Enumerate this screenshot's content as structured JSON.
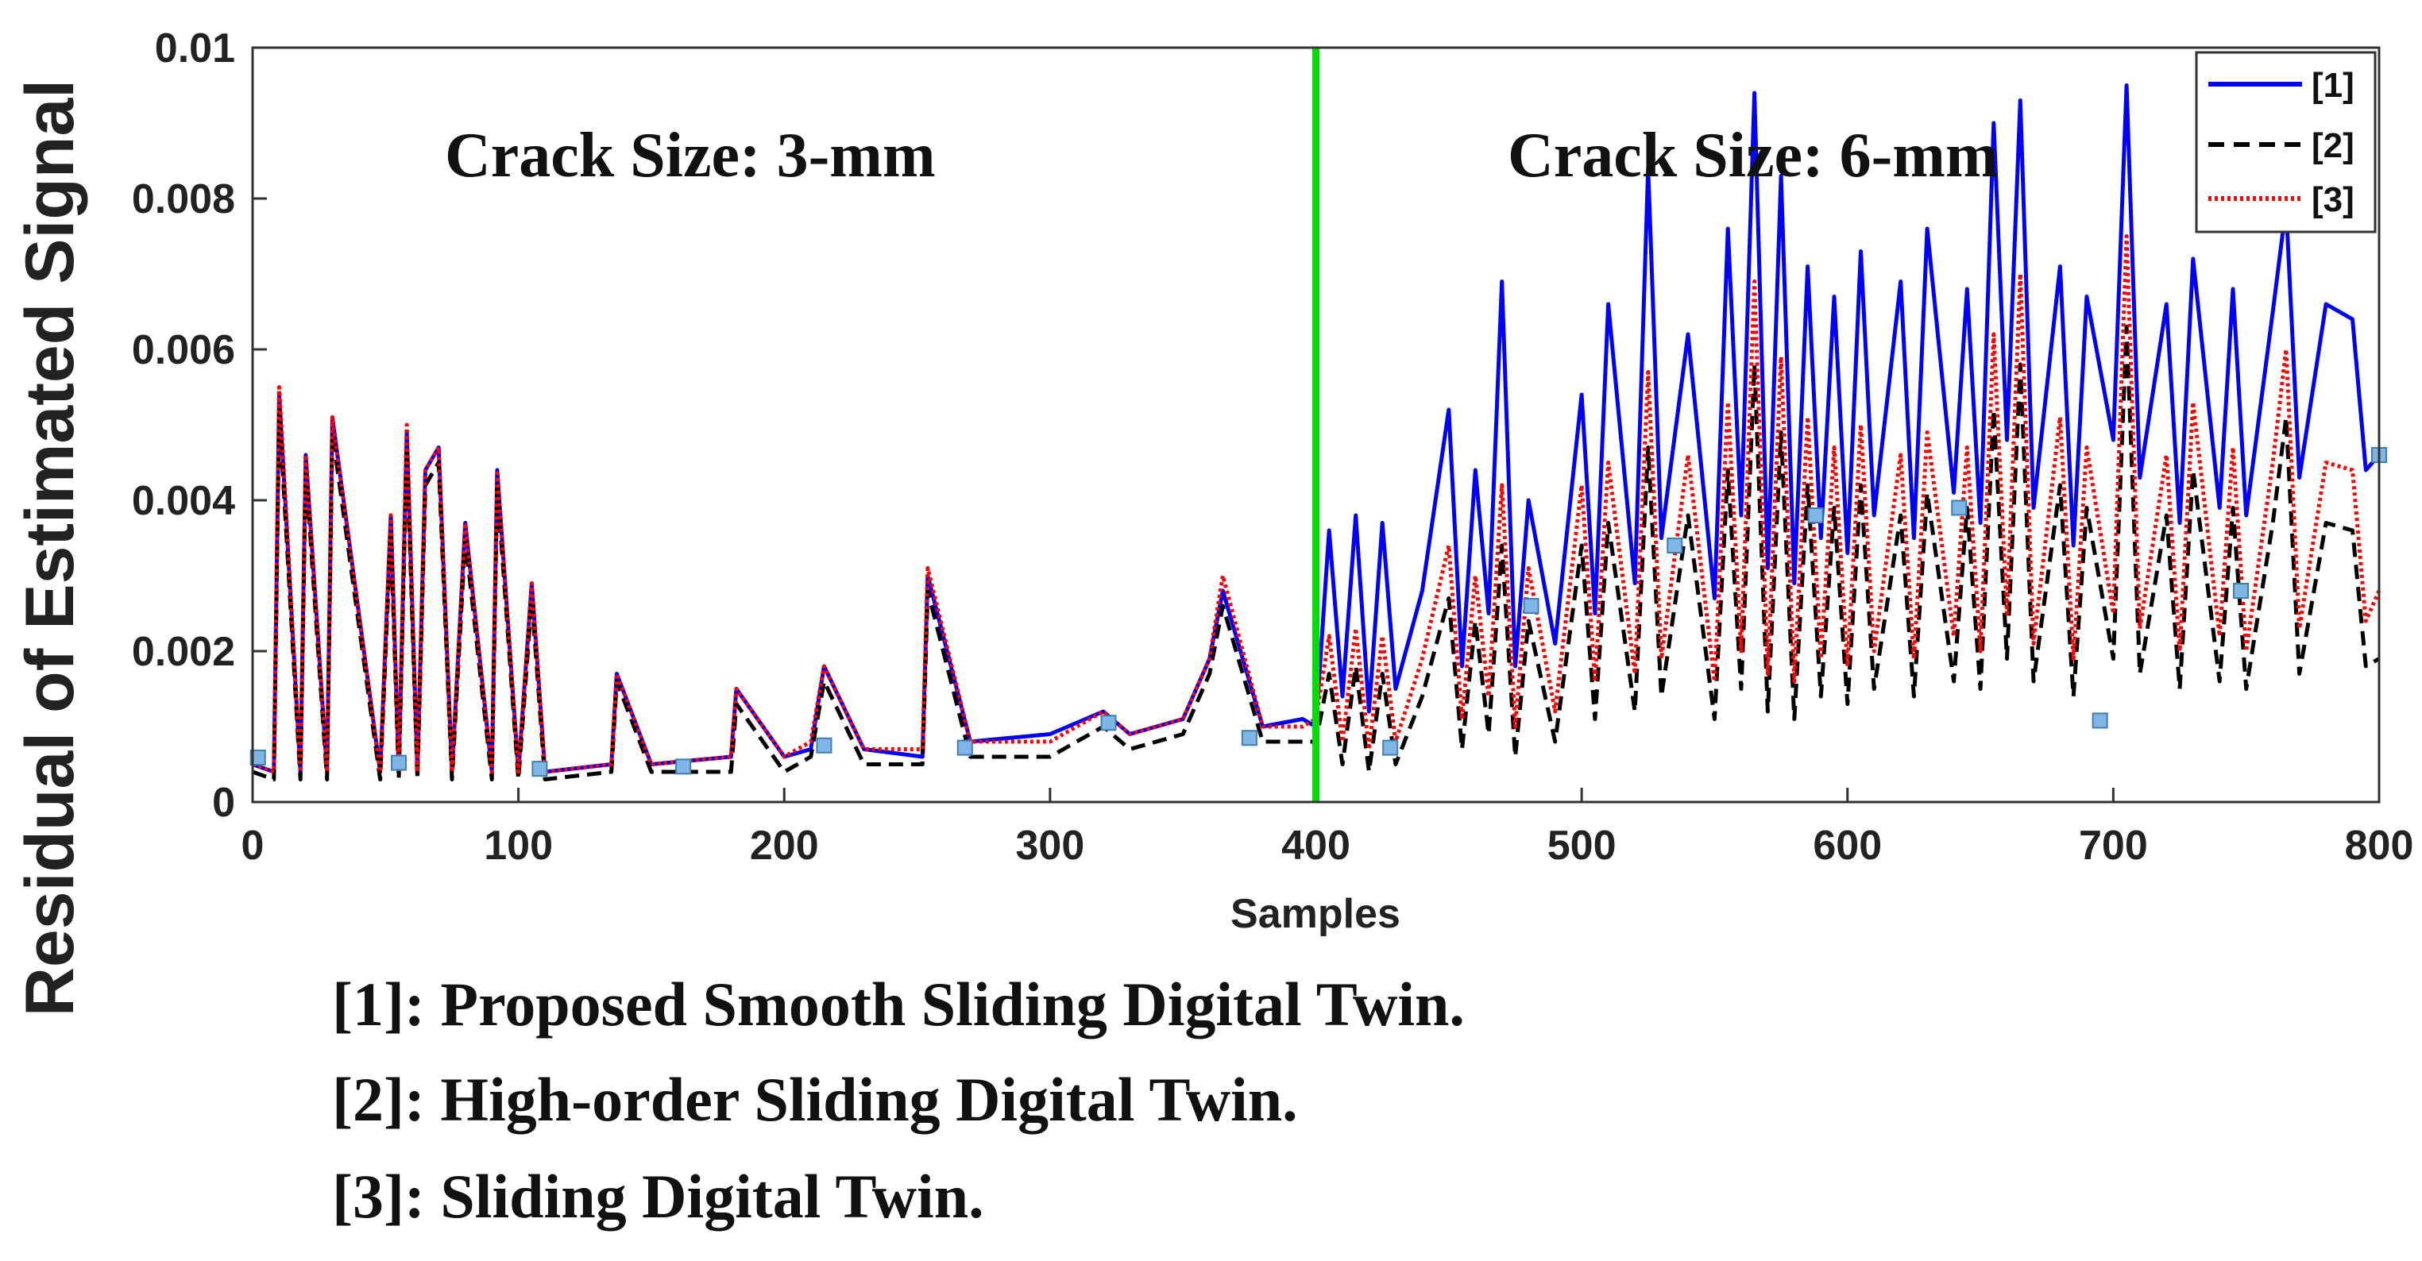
{
  "chart_data": {
    "type": "line",
    "xlabel": "Samples",
    "ylabel": "Residual of Estimated Signal",
    "xlim": [
      0,
      800
    ],
    "ylim": [
      0,
      0.01
    ],
    "x_ticks": [
      0,
      100,
      200,
      300,
      400,
      500,
      600,
      700,
      800
    ],
    "y_ticks": [
      0,
      0.002,
      0.004,
      0.006,
      0.008,
      0.01
    ],
    "x_tick_labels": [
      "0",
      "100",
      "200",
      "300",
      "400",
      "500",
      "600",
      "700",
      "800"
    ],
    "y_tick_labels": [
      "0",
      "0.002",
      "0.004",
      "0.006",
      "0.008",
      "0.01"
    ],
    "divider_x": 400,
    "divider_color": "#00dd00",
    "annotations": [
      {
        "text": "Crack Size: 3-mm",
        "x": 100,
        "y": 0.0085
      },
      {
        "text": "Crack Size: 6-mm",
        "x": 475,
        "y": 0.0085
      }
    ],
    "legend": {
      "placement": "top-right",
      "entries": [
        "[1]",
        "[2]",
        "[3]"
      ]
    },
    "series": [
      {
        "name": "[1]",
        "color": "#0000ff",
        "style": "solid",
        "x": [
          0,
          8,
          10,
          18,
          20,
          28,
          30,
          48,
          52,
          55,
          58,
          62,
          65,
          70,
          75,
          80,
          90,
          92,
          100,
          105,
          110,
          135,
          137,
          150,
          180,
          182,
          200,
          210,
          215,
          230,
          252,
          254,
          270,
          300,
          320,
          330,
          350,
          360,
          365,
          380,
          395,
          400,
          405,
          410,
          415,
          420,
          425,
          430,
          440,
          450,
          455,
          460,
          465,
          470,
          475,
          480,
          490,
          500,
          505,
          510,
          520,
          525,
          530,
          540,
          550,
          555,
          560,
          565,
          570,
          575,
          580,
          585,
          590,
          595,
          600,
          605,
          610,
          620,
          625,
          630,
          640,
          645,
          650,
          655,
          660,
          665,
          670,
          680,
          685,
          690,
          700,
          705,
          710,
          720,
          725,
          730,
          740,
          745,
          750,
          760,
          765,
          770,
          780,
          790,
          795,
          800
        ],
        "values": [
          0.0005,
          0.0004,
          0.0054,
          0.0004,
          0.0046,
          0.0004,
          0.0051,
          0.0004,
          0.0038,
          0.0004,
          0.0049,
          0.0004,
          0.0044,
          0.0047,
          0.0004,
          0.0037,
          0.0004,
          0.0044,
          0.0004,
          0.0029,
          0.0004,
          0.0005,
          0.0017,
          0.0005,
          0.0006,
          0.0015,
          0.0006,
          0.0007,
          0.0018,
          0.0007,
          0.0006,
          0.003,
          0.0008,
          0.0009,
          0.0012,
          0.0009,
          0.0011,
          0.0019,
          0.0028,
          0.001,
          0.0011,
          0.001,
          0.0036,
          0.0014,
          0.0038,
          0.0012,
          0.0037,
          0.0015,
          0.0028,
          0.0052,
          0.0018,
          0.0044,
          0.0025,
          0.0069,
          0.0018,
          0.004,
          0.0021,
          0.0054,
          0.0025,
          0.0066,
          0.0029,
          0.0084,
          0.0035,
          0.0062,
          0.0027,
          0.0076,
          0.0038,
          0.0094,
          0.0031,
          0.0083,
          0.0029,
          0.0071,
          0.0035,
          0.0067,
          0.0033,
          0.0073,
          0.0038,
          0.0069,
          0.0035,
          0.0076,
          0.0041,
          0.0068,
          0.0037,
          0.009,
          0.0048,
          0.0093,
          0.0039,
          0.0071,
          0.0034,
          0.0067,
          0.0048,
          0.0095,
          0.0043,
          0.0066,
          0.0037,
          0.0072,
          0.0039,
          0.0068,
          0.0038,
          0.0065,
          0.0079,
          0.0043,
          0.0066,
          0.0064,
          0.0044,
          0.0046
        ]
      },
      {
        "name": "[2]",
        "color": "#000000",
        "style": "dashed",
        "x": [
          0,
          8,
          10,
          18,
          20,
          28,
          30,
          48,
          52,
          55,
          58,
          62,
          65,
          70,
          75,
          80,
          90,
          92,
          100,
          105,
          110,
          135,
          137,
          150,
          180,
          182,
          200,
          210,
          215,
          230,
          252,
          254,
          270,
          300,
          320,
          330,
          350,
          360,
          365,
          380,
          395,
          400,
          405,
          410,
          415,
          420,
          425,
          430,
          440,
          450,
          455,
          460,
          465,
          470,
          475,
          480,
          490,
          500,
          505,
          510,
          520,
          525,
          530,
          540,
          550,
          555,
          560,
          565,
          570,
          575,
          580,
          585,
          590,
          595,
          600,
          605,
          610,
          620,
          625,
          630,
          640,
          645,
          650,
          655,
          660,
          665,
          670,
          680,
          685,
          690,
          700,
          705,
          710,
          720,
          725,
          730,
          740,
          745,
          750,
          760,
          765,
          770,
          780,
          790,
          795,
          800
        ],
        "values": [
          0.0004,
          0.0003,
          0.0052,
          0.0003,
          0.0044,
          0.0003,
          0.0049,
          0.0003,
          0.0036,
          0.0003,
          0.0047,
          0.0003,
          0.0042,
          0.0045,
          0.0003,
          0.0035,
          0.0003,
          0.0042,
          0.0003,
          0.0027,
          0.0003,
          0.0004,
          0.0016,
          0.0004,
          0.0004,
          0.0013,
          0.0004,
          0.0006,
          0.0016,
          0.0005,
          0.0005,
          0.0028,
          0.0006,
          0.0006,
          0.001,
          0.0007,
          0.0009,
          0.0017,
          0.0026,
          0.0008,
          0.0008,
          0.0008,
          0.0017,
          0.0005,
          0.0018,
          0.0004,
          0.0017,
          0.0005,
          0.0014,
          0.0027,
          0.0007,
          0.0024,
          0.0009,
          0.0034,
          0.0006,
          0.0024,
          0.0008,
          0.0034,
          0.0011,
          0.0037,
          0.0012,
          0.0047,
          0.0014,
          0.0038,
          0.0011,
          0.0044,
          0.0015,
          0.0058,
          0.0012,
          0.0049,
          0.0011,
          0.0042,
          0.0014,
          0.0039,
          0.0013,
          0.0042,
          0.0015,
          0.0038,
          0.0014,
          0.0041,
          0.0016,
          0.0039,
          0.0015,
          0.0052,
          0.0019,
          0.0058,
          0.0016,
          0.0042,
          0.0014,
          0.0039,
          0.0019,
          0.0063,
          0.0017,
          0.0038,
          0.0015,
          0.0044,
          0.0016,
          0.0039,
          0.0015,
          0.0037,
          0.0051,
          0.0017,
          0.0037,
          0.0036,
          0.0018,
          0.0019
        ]
      },
      {
        "name": "[3]",
        "color": "#ff0000",
        "style": "dotted",
        "x": [
          0,
          8,
          10,
          18,
          20,
          28,
          30,
          48,
          52,
          55,
          58,
          62,
          65,
          70,
          75,
          80,
          90,
          92,
          100,
          105,
          110,
          135,
          137,
          150,
          180,
          182,
          200,
          210,
          215,
          230,
          252,
          254,
          270,
          300,
          320,
          330,
          350,
          360,
          365,
          380,
          395,
          400,
          405,
          410,
          415,
          420,
          425,
          430,
          440,
          450,
          455,
          460,
          465,
          470,
          475,
          480,
          490,
          500,
          505,
          510,
          520,
          525,
          530,
          540,
          550,
          555,
          560,
          565,
          570,
          575,
          580,
          585,
          590,
          595,
          600,
          605,
          610,
          620,
          625,
          630,
          640,
          645,
          650,
          655,
          660,
          665,
          670,
          680,
          685,
          690,
          700,
          705,
          710,
          720,
          725,
          730,
          740,
          745,
          750,
          760,
          765,
          770,
          780,
          790,
          795,
          800
        ],
        "values": [
          0.0005,
          0.0004,
          0.0055,
          0.0004,
          0.0046,
          0.0004,
          0.0051,
          0.0004,
          0.0038,
          0.0004,
          0.005,
          0.0004,
          0.0044,
          0.0047,
          0.0004,
          0.0037,
          0.0004,
          0.0044,
          0.0004,
          0.0029,
          0.0004,
          0.0005,
          0.0017,
          0.0005,
          0.0006,
          0.0015,
          0.0006,
          0.0008,
          0.0018,
          0.0007,
          0.0007,
          0.0031,
          0.0008,
          0.0008,
          0.0012,
          0.0009,
          0.0011,
          0.0019,
          0.003,
          0.001,
          0.001,
          0.0011,
          0.0022,
          0.0008,
          0.0023,
          0.0007,
          0.0022,
          0.0008,
          0.0019,
          0.0034,
          0.0011,
          0.003,
          0.0014,
          0.0042,
          0.001,
          0.0031,
          0.0012,
          0.0042,
          0.0016,
          0.0045,
          0.0017,
          0.0057,
          0.0019,
          0.0046,
          0.0016,
          0.0053,
          0.002,
          0.0069,
          0.0017,
          0.0059,
          0.0016,
          0.0051,
          0.0019,
          0.0047,
          0.0018,
          0.005,
          0.002,
          0.0046,
          0.0019,
          0.0049,
          0.0022,
          0.0047,
          0.002,
          0.0062,
          0.0025,
          0.007,
          0.0021,
          0.0051,
          0.0019,
          0.0047,
          0.0025,
          0.0075,
          0.0023,
          0.0046,
          0.002,
          0.0053,
          0.0022,
          0.0047,
          0.002,
          0.0045,
          0.006,
          0.0023,
          0.0045,
          0.0044,
          0.0024,
          0.0028
        ]
      }
    ],
    "markers": {
      "color": "#7fb6e6",
      "points": [
        [
          2,
          0.00059
        ],
        [
          55,
          0.00052
        ],
        [
          108,
          0.00044
        ],
        [
          162,
          0.00047
        ],
        [
          215,
          0.00075
        ],
        [
          268,
          0.00072
        ],
        [
          322,
          0.00105
        ],
        [
          375,
          0.00085
        ],
        [
          428,
          0.00072
        ],
        [
          481,
          0.0026
        ],
        [
          535,
          0.0034
        ],
        [
          588,
          0.0038
        ],
        [
          642,
          0.0039
        ],
        [
          695,
          0.00108
        ],
        [
          748,
          0.0028
        ],
        [
          800,
          0.0046
        ]
      ]
    }
  },
  "caption": {
    "lines": [
      "[1]: Proposed Smooth Sliding Digital Twin.",
      "[2]: High-order Sliding Digital Twin.",
      "[3]: Sliding Digital Twin."
    ]
  }
}
